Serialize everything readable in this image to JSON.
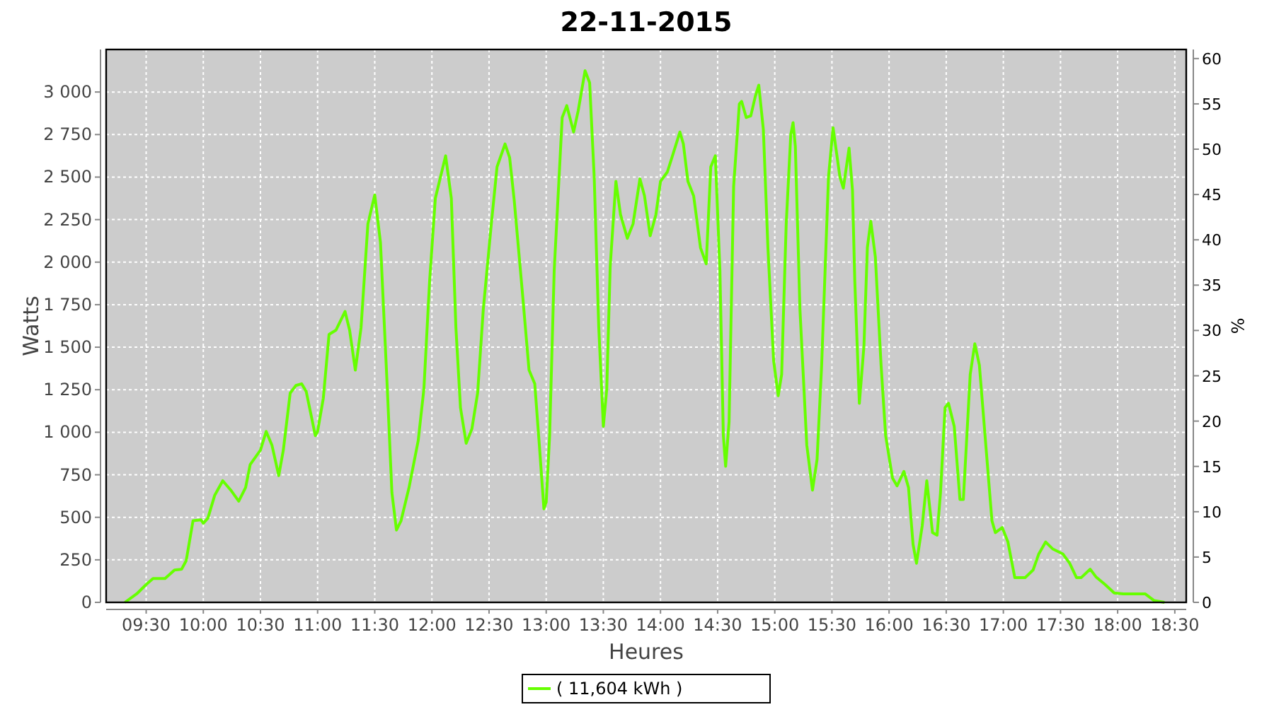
{
  "chart_data": {
    "type": "line",
    "title": "22-11-2015",
    "xlabel": "Heures",
    "ylabel": "Watts",
    "y2label": "%",
    "xlim": [
      9.15,
      18.6
    ],
    "xticks": [
      {
        "value": 9.5,
        "label": "09:30"
      },
      {
        "value": 10,
        "label": "10:00"
      },
      {
        "value": 10.5,
        "label": "10:30"
      },
      {
        "value": 11,
        "label": "11:00"
      },
      {
        "value": 11.5,
        "label": "11:30"
      },
      {
        "value": 12,
        "label": "12:00"
      },
      {
        "value": 12.5,
        "label": "12:30"
      },
      {
        "value": 13,
        "label": "13:00"
      },
      {
        "value": 13.5,
        "label": "13:30"
      },
      {
        "value": 14,
        "label": "14:00"
      },
      {
        "value": 14.5,
        "label": "14:30"
      },
      {
        "value": 15,
        "label": "15:00"
      },
      {
        "value": 15.5,
        "label": "15:30"
      },
      {
        "value": 16,
        "label": "16:00"
      },
      {
        "value": 16.5,
        "label": "16:30"
      },
      {
        "value": 17,
        "label": "17:00"
      },
      {
        "value": 17.5,
        "label": "17:30"
      },
      {
        "value": 18,
        "label": "18:00"
      },
      {
        "value": 18.5,
        "label": "18:30"
      }
    ],
    "ylim": [
      0,
      3250
    ],
    "yticks": [
      0,
      250,
      500,
      750,
      {
        "value": 1000,
        "label": "1 000"
      },
      {
        "value": 1250,
        "label": "1 250"
      },
      {
        "value": 1500,
        "label": "1 500"
      },
      {
        "value": 1750,
        "label": "1 750"
      },
      {
        "value": 2000,
        "label": "2 000"
      },
      {
        "value": 2250,
        "label": "2 250"
      },
      {
        "value": 2500,
        "label": "2 500"
      },
      {
        "value": 2750,
        "label": "2 750"
      },
      {
        "value": 3000,
        "label": "3 000"
      }
    ],
    "y2lim": [
      0,
      61
    ],
    "y2ticks": [
      0,
      5,
      10,
      15,
      20,
      25,
      30,
      35,
      40,
      45,
      50,
      55,
      60
    ],
    "grid": true,
    "legend": "bottom",
    "line_style": "solid",
    "marker": "none",
    "series": [
      {
        "name": "( 11,604 kWh )",
        "color": "#66ff00",
        "x": [
          9.314,
          9.417,
          9.5,
          9.56,
          9.665,
          9.748,
          9.81,
          9.85,
          9.91,
          9.98,
          10.0,
          10.04,
          10.1,
          10.17,
          10.24,
          10.31,
          10.37,
          10.41,
          10.5,
          10.55,
          10.6,
          10.66,
          10.7,
          10.76,
          10.81,
          10.86,
          10.9,
          10.98,
          11.0,
          11.05,
          11.1,
          11.16,
          11.24,
          11.28,
          11.33,
          11.38,
          11.44,
          11.5,
          11.55,
          11.61,
          11.65,
          11.69,
          11.73,
          11.8,
          11.88,
          11.93,
          11.98,
          12.03,
          12.12,
          12.17,
          12.21,
          12.25,
          12.3,
          12.35,
          12.4,
          12.45,
          12.52,
          12.57,
          12.64,
          12.68,
          12.72,
          12.79,
          12.85,
          12.9,
          12.94,
          12.98,
          13.0,
          13.03,
          13.07,
          13.14,
          13.18,
          13.24,
          13.28,
          13.34,
          13.38,
          13.42,
          13.46,
          13.5,
          13.53,
          13.56,
          13.61,
          13.65,
          13.71,
          13.76,
          13.82,
          13.86,
          13.91,
          13.96,
          14.0,
          14.06,
          14.1,
          14.17,
          14.2,
          14.24,
          14.29,
          14.35,
          14.4,
          14.44,
          14.48,
          14.52,
          14.55,
          14.57,
          14.6,
          14.64,
          14.69,
          14.71,
          14.75,
          14.79,
          14.83,
          14.86,
          14.9,
          14.94,
          14.99,
          15.03,
          15.06,
          15.1,
          15.14,
          15.16,
          15.18,
          15.22,
          15.28,
          15.33,
          15.37,
          15.41,
          15.47,
          15.51,
          15.57,
          15.6,
          15.65,
          15.68,
          15.7,
          15.74,
          15.78,
          15.81,
          15.84,
          15.88,
          15.93,
          15.97,
          16.03,
          16.07,
          16.13,
          16.17,
          16.21,
          16.24,
          16.29,
          16.33,
          16.38,
          16.42,
          16.45,
          16.49,
          16.52,
          16.57,
          16.62,
          16.65,
          16.71,
          16.75,
          16.79,
          16.85,
          16.9,
          16.93,
          16.99,
          17.04,
          17.1,
          17.19,
          17.26,
          17.31,
          17.37,
          17.43,
          17.52,
          17.58,
          17.64,
          17.68,
          17.76,
          17.81,
          17.89,
          17.97,
          18.05,
          18.24,
          18.32,
          18.41
        ],
        "values": [
          0,
          50,
          105,
          140,
          140,
          190,
          195,
          245,
          480,
          485,
          465,
          495,
          630,
          715,
          660,
          595,
          675,
          810,
          895,
          1005,
          925,
          745,
          895,
          1230,
          1275,
          1285,
          1240,
          980,
          1005,
          1200,
          1575,
          1600,
          1710,
          1600,
          1365,
          1615,
          2225,
          2395,
          2115,
          1255,
          645,
          425,
          480,
          675,
          950,
          1255,
          1890,
          2375,
          2625,
          2375,
          1615,
          1145,
          935,
          1020,
          1230,
          1725,
          2225,
          2560,
          2695,
          2615,
          2365,
          1835,
          1365,
          1285,
          925,
          550,
          590,
          980,
          1950,
          2850,
          2920,
          2765,
          2890,
          3125,
          3055,
          2500,
          1615,
          1035,
          1255,
          1975,
          2475,
          2280,
          2140,
          2225,
          2490,
          2390,
          2155,
          2280,
          2475,
          2530,
          2615,
          2765,
          2695,
          2475,
          2390,
          2085,
          1990,
          2560,
          2625,
          1950,
          980,
          800,
          1060,
          2445,
          2930,
          2945,
          2850,
          2860,
          2975,
          3040,
          2780,
          2085,
          1420,
          1215,
          1340,
          2225,
          2750,
          2820,
          2680,
          1725,
          925,
          660,
          840,
          1395,
          2500,
          2790,
          2500,
          2435,
          2670,
          2420,
          1890,
          1170,
          1505,
          2085,
          2240,
          2030,
          1395,
          980,
          730,
          685,
          770,
          675,
          340,
          230,
          450,
          715,
          410,
          395,
          645,
          1145,
          1170,
          1035,
          605,
          605,
          1340,
          1520,
          1395,
          895,
          480,
          410,
          440,
          355,
          145,
          145,
          190,
          285,
          355,
          315,
          285,
          230,
          145,
          145,
          195,
          150,
          105,
          55,
          50,
          50,
          10,
          0
        ]
      }
    ]
  }
}
